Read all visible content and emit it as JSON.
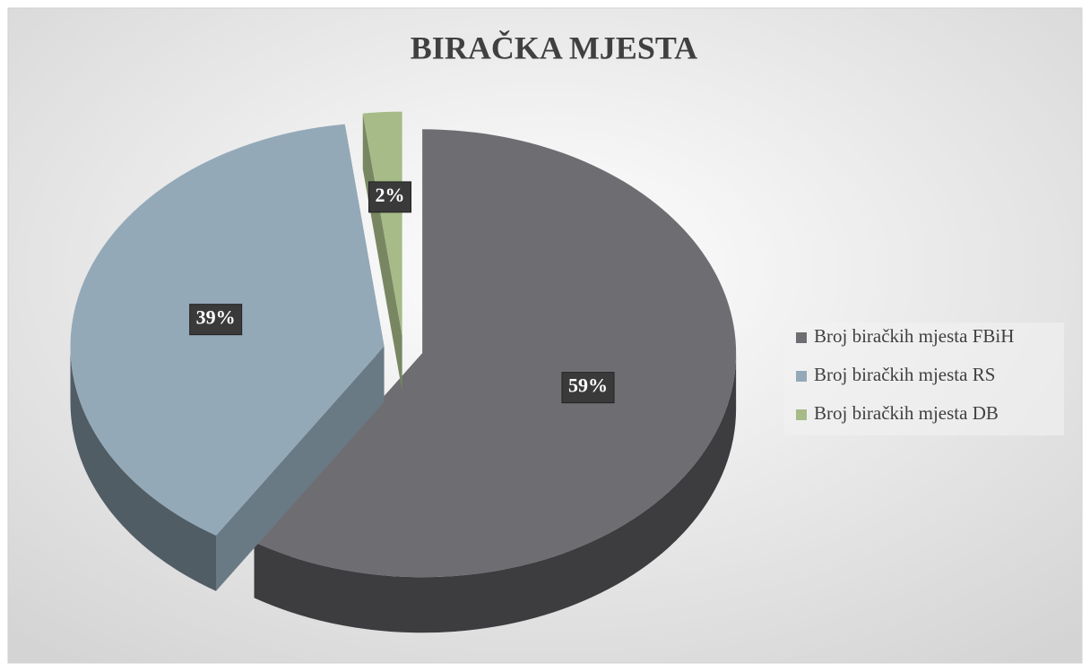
{
  "chart_data": {
    "type": "pie",
    "title": "BIRAČKA MJESTA",
    "categories": [
      "Broj biračkih mjesta FBiH",
      "Broj biračkih mjesta RS",
      "Broj biračkih mjesta DB"
    ],
    "values": [
      59,
      39,
      2
    ],
    "value_labels": [
      "59%",
      "39%",
      "2%"
    ],
    "colors": [
      "#6e6d72",
      "#93a9b8",
      "#a6bb88"
    ],
    "legend": "right"
  }
}
